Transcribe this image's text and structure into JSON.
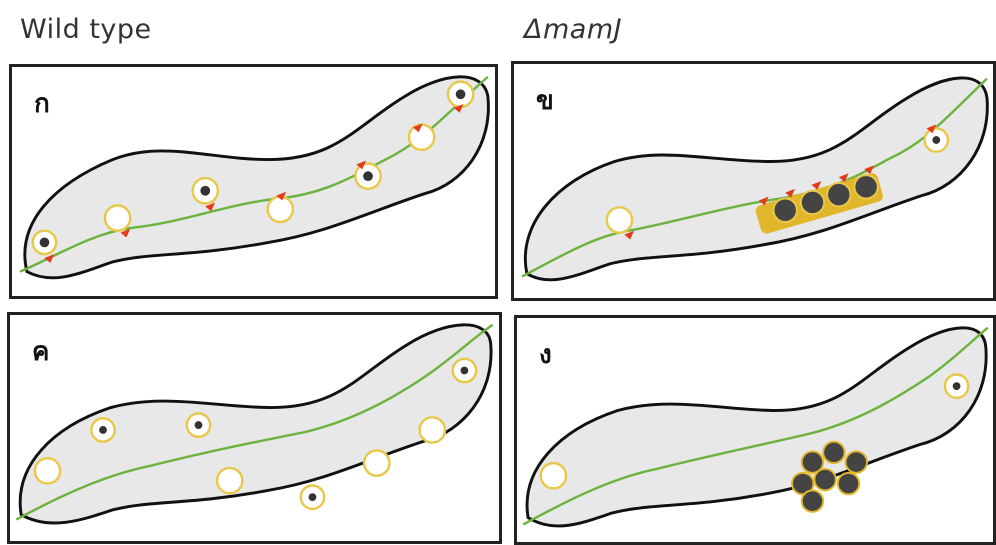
{
  "headers": {
    "wild_type": "Wild type",
    "mutant": "ΔmamJ"
  },
  "panels": [
    {
      "id": "a",
      "label": "ก",
      "group": "wild_type",
      "actin_filament": "visible",
      "magnetosome_state": "chain"
    },
    {
      "id": "b",
      "label": "ข",
      "group": "mutant",
      "actin_filament": "visible",
      "magnetosome_state": "chain"
    },
    {
      "id": "c",
      "label": "ค",
      "group": "wild_type",
      "actin_filament": "visible",
      "magnetosome_state": "dispersed"
    },
    {
      "id": "d",
      "label": "ง",
      "group": "mutant",
      "actin_filament": "visible",
      "magnetosome_state": "clustered"
    }
  ],
  "colors": {
    "cell_fill": "#e8e8e8",
    "cell_outline": "#111111",
    "filament": "#6db33f",
    "vesicle_ring": "#e8c84a",
    "crystal": "#333333",
    "motor_arrow": "#e23a1c",
    "chain_bar": "#e2b62a"
  }
}
